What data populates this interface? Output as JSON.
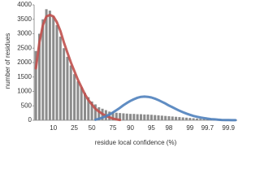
{
  "chart_data": {
    "type": "bar",
    "x_label": "residue local confidence (%)",
    "y_label": "number of residues",
    "categories": [
      null,
      null,
      null,
      null,
      null,
      "10",
      null,
      null,
      null,
      null,
      null,
      "25",
      null,
      null,
      null,
      null,
      "50",
      null,
      null,
      null,
      null,
      null,
      "75",
      null,
      null,
      null,
      null,
      "90",
      null,
      null,
      null,
      null,
      null,
      "95",
      null,
      null,
      null,
      null,
      "98",
      null,
      null,
      null,
      null,
      null,
      "99",
      null,
      null,
      null,
      null,
      "99.7",
      null,
      null,
      null,
      null,
      null,
      "99.9",
      null,
      null
    ],
    "ylim": [
      0,
      4000
    ],
    "yticks": [
      0,
      500,
      1000,
      1500,
      2000,
      2500,
      3000,
      3500,
      4000
    ],
    "series": [
      {
        "color": "#8c8c8c",
        "values": [
          2400,
          3000,
          3500,
          3850,
          3800,
          3600,
          3300,
          2900,
          2500,
          2200,
          1900,
          1600,
          1350,
          1150,
          950,
          800,
          650,
          550,
          450,
          400,
          350,
          300,
          280,
          260,
          250,
          240,
          230,
          220,
          220,
          210,
          210,
          200,
          200,
          190,
          180,
          170,
          160,
          150,
          140,
          130,
          120,
          110,
          100,
          90,
          80,
          70,
          60,
          50,
          45,
          40,
          35,
          30,
          25,
          20,
          15,
          10,
          5,
          5
        ]
      },
      {
        "type": "line",
        "color": "#c0504d",
        "values": [
          1800,
          2700,
          3300,
          3600,
          3650,
          3600,
          3400,
          3100,
          2700,
          2350,
          2000,
          1700,
          1400,
          1150,
          900,
          700,
          550,
          400,
          300,
          220,
          150,
          100,
          60,
          30,
          10,
          null,
          null,
          null,
          null,
          null,
          null,
          null,
          null,
          null,
          null,
          null,
          null,
          null,
          null,
          null,
          null,
          null,
          null,
          null,
          null,
          null,
          null,
          null,
          null,
          null,
          null,
          null,
          null,
          null,
          null,
          null,
          null,
          null
        ]
      },
      {
        "type": "line",
        "color": "#4f81bd",
        "values": [
          null,
          null,
          null,
          null,
          null,
          null,
          null,
          null,
          null,
          null,
          null,
          null,
          null,
          null,
          null,
          null,
          null,
          20,
          50,
          90,
          140,
          200,
          270,
          350,
          430,
          520,
          600,
          670,
          730,
          780,
          810,
          820,
          810,
          790,
          750,
          700,
          640,
          580,
          510,
          450,
          390,
          330,
          280,
          230,
          190,
          150,
          120,
          95,
          75,
          55,
          40,
          30,
          20,
          12,
          8,
          5,
          3,
          2
        ]
      }
    ]
  }
}
